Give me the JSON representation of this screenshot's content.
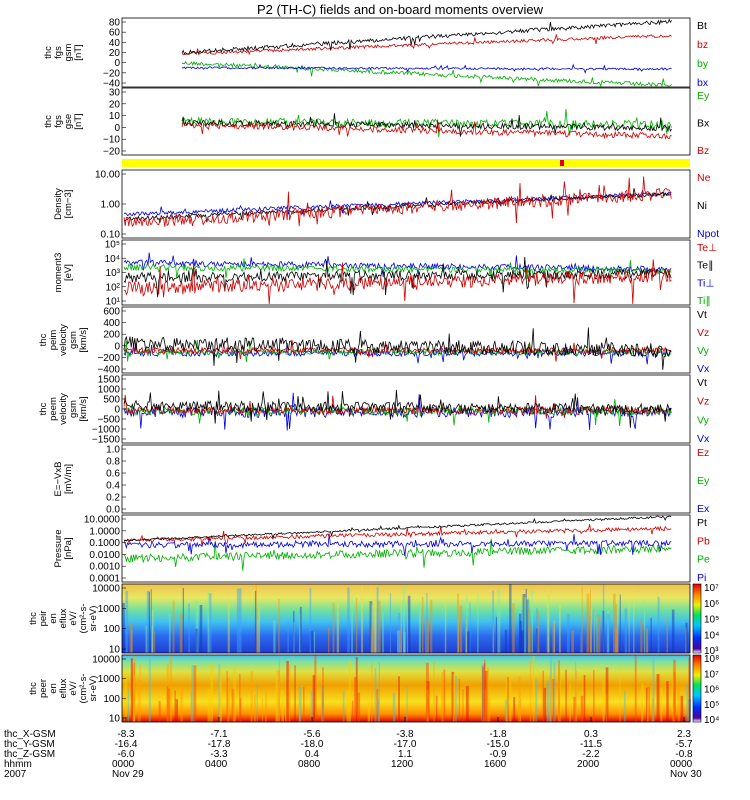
{
  "title": "P2 (TH-C) fields and on-board moments overview",
  "chart_data": [
    {
      "type": "line",
      "ylabel_lines": [
        "thc",
        "fgs",
        "gsm",
        "[nT]"
      ],
      "yticks": [
        "80",
        "60",
        "40",
        "20",
        "0",
        "−20",
        "−40"
      ],
      "legend": [
        {
          "name": "Bt",
          "color": "#000000"
        },
        {
          "name": "bz",
          "color": "#d00000"
        },
        {
          "name": "by",
          "color": "#00b000"
        },
        {
          "name": "bx",
          "color": "#0000e0"
        }
      ]
    },
    {
      "type": "line",
      "ylabel_lines": [
        "thc",
        "fgs",
        "gse",
        "[nT]"
      ],
      "yticks": [
        "30",
        "20",
        "10",
        "0",
        "−10",
        "−20"
      ],
      "legend": [
        {
          "name": "Ey",
          "color": "#00b000"
        },
        {
          "name": "Bx",
          "color": "#000000"
        },
        {
          "name": "Bz",
          "color": "#d00000"
        }
      ]
    },
    {
      "type": "line",
      "ylabel_lines": [
        "Density",
        "[cm−3]"
      ],
      "yticks": [
        "10.00",
        "1.00",
        "0.10"
      ],
      "legend": [
        {
          "name": "Ne",
          "color": "#d00000"
        },
        {
          "name": "Ni",
          "color": "#000000"
        },
        {
          "name": "Npot",
          "color": "#0000e0"
        }
      ]
    },
    {
      "type": "line",
      "ylabel_lines": [
        "moment3",
        "[eV]"
      ],
      "yticks": [
        "10⁵",
        "10⁴",
        "10³",
        "10²",
        "10¹"
      ],
      "legend": [
        {
          "name": "Te⊥",
          "color": "#d00000"
        },
        {
          "name": "Te∥",
          "color": "#000000"
        },
        {
          "name": "Ti⊥",
          "color": "#0000e0"
        },
        {
          "name": "Ti∥",
          "color": "#00b000"
        }
      ]
    },
    {
      "type": "line",
      "ylabel_lines": [
        "thc",
        "peim",
        "velocity",
        "gsm",
        "[km/s]"
      ],
      "yticks": [
        "600",
        "400",
        "200",
        "0",
        "−200",
        "−400"
      ],
      "legend": [
        {
          "name": "Vt",
          "color": "#000000"
        },
        {
          "name": "Vz",
          "color": "#d00000"
        },
        {
          "name": "Vy",
          "color": "#00b000"
        },
        {
          "name": "Vx",
          "color": "#0000e0"
        }
      ]
    },
    {
      "type": "line",
      "ylabel_lines": [
        "thc",
        "peem",
        "velocity",
        "gsm",
        "[km/s]"
      ],
      "yticks": [
        "1500",
        "1000",
        "500",
        "0",
        "−500",
        "−1000",
        "−1500"
      ],
      "legend": [
        {
          "name": "Vt",
          "color": "#000000"
        },
        {
          "name": "Vz",
          "color": "#d00000"
        },
        {
          "name": "Vy",
          "color": "#00b000"
        },
        {
          "name": "Vx",
          "color": "#0000e0"
        }
      ]
    },
    {
      "type": "line",
      "ylabel_lines": [
        "E=−VxB",
        "[mV/m]"
      ],
      "yticks": [
        "1.0",
        "0.8",
        "0.6",
        "0.4",
        "0.2",
        "0.0"
      ],
      "legend": [
        {
          "name": "Ez",
          "color": "#d00000"
        },
        {
          "name": "Ey",
          "color": "#00b000"
        },
        {
          "name": "Ex",
          "color": "#0000e0"
        }
      ]
    },
    {
      "type": "line",
      "ylabel_lines": [
        "Pressure",
        "[nPa]"
      ],
      "yticks": [
        "10.0000",
        "1.0000",
        "0.1000",
        "0.0100",
        "0.0010",
        "0.0001"
      ],
      "legend": [
        {
          "name": "Pt",
          "color": "#000000"
        },
        {
          "name": "Pb",
          "color": "#d00000"
        },
        {
          "name": "Pe",
          "color": "#00b000"
        },
        {
          "name": "Pi",
          "color": "#0000e0"
        }
      ]
    },
    {
      "type": "heatmap",
      "ylabel_lines": [
        "thc",
        "peir",
        "en",
        "eflux",
        "eV/",
        "(cm²-s-",
        "sr-eV)"
      ],
      "yticks": [
        "10000",
        "1000",
        "100",
        "10"
      ],
      "colorbar": [
        "10⁷",
        "10⁶",
        "10⁵",
        "10⁴",
        "10³"
      ]
    },
    {
      "type": "heatmap",
      "ylabel_lines": [
        "thc",
        "peer",
        "en",
        "eflux",
        "eV/",
        "(cm²-s-",
        "sr-eV)"
      ],
      "yticks": [
        "10000",
        "1000",
        "100",
        "10"
      ],
      "colorbar": [
        "10⁸",
        "10⁷",
        "10⁶",
        "10⁵",
        "10⁴"
      ]
    }
  ],
  "xaxis": {
    "row_labels": [
      "thc_X-GSM",
      "thc_Y-GSM",
      "thc_Z-GSM",
      "hhmm",
      "2007"
    ],
    "ticks": [
      {
        "x": "-8.3",
        "y": "-16.4",
        "z": "-6.0",
        "hhmm": "0000",
        "date": "Nov 29"
      },
      {
        "x": "-7.1",
        "y": "-17.8",
        "z": "-3.3",
        "hhmm": "0400",
        "date": ""
      },
      {
        "x": "-5.6",
        "y": "-18.0",
        "z": "0.4",
        "hhmm": "0800",
        "date": ""
      },
      {
        "x": "-3.8",
        "y": "-17.0",
        "z": "1.1",
        "hhmm": "1200",
        "date": ""
      },
      {
        "x": "-1.8",
        "y": "-15.0",
        "z": "-0.9",
        "hhmm": "1600",
        "date": ""
      },
      {
        "x": "0.3",
        "y": "-11.5",
        "z": "-2.2",
        "hhmm": "2000",
        "date": ""
      },
      {
        "x": "2.3",
        "y": "-5.7",
        "z": "-0.8",
        "hhmm": "0000",
        "date": "Nov 30"
      }
    ]
  }
}
